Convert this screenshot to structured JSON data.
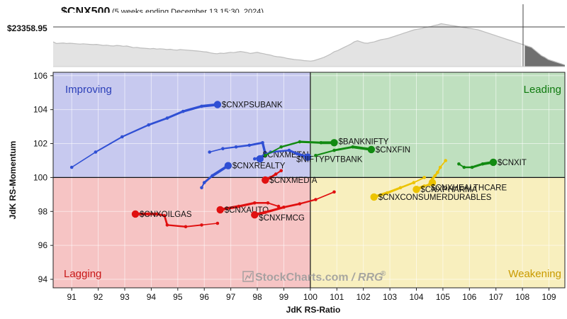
{
  "header": {
    "title": "$CNX500",
    "subtitle": "(5 weeks ending December 13 15:30, 2024)",
    "price_label": "$23358.95"
  },
  "watermark": {
    "brand": "StockCharts.com",
    "suffix": "/ RRG",
    "reg": "®"
  },
  "colors": {
    "improving_bg": "#c7c9ef",
    "leading_bg": "#bfe0bf",
    "lagging_bg": "#f6c4c4",
    "weakening_bg": "#f8efbe",
    "blue": "#2f4fd4",
    "green": "#128a12",
    "red": "#e01010",
    "yellow": "#ecc300"
  },
  "chart_data": {
    "type": "scatter",
    "title": "",
    "xlabel": "JdK RS-Ratio",
    "ylabel": "JdK RS-Momentum",
    "xlim": [
      90.3,
      109.6
    ],
    "ylim": [
      93.5,
      106.2
    ],
    "xticks": [
      91,
      92,
      93,
      94,
      95,
      96,
      97,
      98,
      99,
      100,
      101,
      102,
      103,
      104,
      105,
      106,
      107,
      108,
      109
    ],
    "yticks": [
      94,
      96,
      98,
      100,
      102,
      104,
      106
    ],
    "grid": true,
    "center": [
      100,
      100
    ],
    "quadrants": {
      "top_left": "Improving",
      "top_right": "Leading",
      "bottom_left": "Lagging",
      "bottom_right": "Weakening"
    },
    "series": [
      {
        "name": "$CNXPSUBANK",
        "color": "blue",
        "points": [
          [
            91.0,
            100.6
          ],
          [
            91.9,
            101.5
          ],
          [
            92.9,
            102.4
          ],
          [
            93.9,
            103.1
          ],
          [
            94.6,
            103.5
          ],
          [
            95.2,
            103.9
          ],
          [
            95.9,
            104.2
          ],
          [
            96.5,
            104.3
          ]
        ]
      },
      {
        "name": "$CNXREALTY",
        "color": "blue",
        "points": [
          [
            95.9,
            99.4
          ],
          [
            96.0,
            99.7
          ],
          [
            96.3,
            100.1
          ],
          [
            96.9,
            100.7
          ]
        ]
      },
      {
        "name": "$CNXMETAL",
        "color": "blue",
        "points": [
          [
            96.2,
            101.5
          ],
          [
            96.7,
            101.7
          ],
          [
            97.2,
            101.8
          ],
          [
            97.7,
            101.9
          ],
          [
            98.2,
            102.05
          ],
          [
            98.3,
            101.4
          ],
          [
            98.1,
            101.1
          ]
        ]
      },
      {
        "name": "$NIFTYPVTBANK",
        "color": "blue",
        "points": [
          [
            97.9,
            101.1
          ],
          [
            98.5,
            101.5
          ],
          [
            99.2,
            101.6
          ],
          [
            99.5,
            101.4
          ],
          [
            99.9,
            101.2
          ]
        ]
      },
      {
        "name": "$BANKNIFTY",
        "color": "green",
        "points": [
          [
            98.3,
            101.3
          ],
          [
            98.9,
            101.8
          ],
          [
            99.6,
            102.1
          ],
          [
            100.4,
            102.05
          ],
          [
            100.9,
            102.05
          ]
        ]
      },
      {
        "name": "$CNXFIN",
        "color": "green",
        "points": [
          [
            100.2,
            101.3
          ],
          [
            100.9,
            101.6
          ],
          [
            101.6,
            101.8
          ],
          [
            102.3,
            101.65
          ]
        ]
      },
      {
        "name": "$CNXIT",
        "color": "green",
        "points": [
          [
            105.6,
            100.8
          ],
          [
            105.8,
            100.6
          ],
          [
            106.1,
            100.6
          ],
          [
            106.5,
            100.8
          ],
          [
            106.9,
            100.9
          ]
        ]
      },
      {
        "name": "$CNXMEDIA",
        "color": "red",
        "points": [
          [
            98.9,
            100.4
          ],
          [
            98.7,
            100.2
          ],
          [
            98.5,
            100.0
          ],
          [
            98.3,
            99.85
          ]
        ]
      },
      {
        "name": "$CNXAUTO",
        "color": "red",
        "points": [
          [
            98.8,
            98.3
          ],
          [
            98.4,
            98.5
          ],
          [
            97.9,
            98.5
          ],
          [
            97.3,
            98.3
          ],
          [
            96.6,
            98.1
          ]
        ]
      },
      {
        "name": "$CNXFMCG",
        "color": "red",
        "points": [
          [
            100.9,
            99.15
          ],
          [
            100.2,
            98.7
          ],
          [
            99.6,
            98.45
          ],
          [
            99.0,
            98.25
          ],
          [
            98.3,
            97.95
          ],
          [
            97.9,
            97.8
          ]
        ]
      },
      {
        "name": "$CNXOILGAS",
        "color": "red",
        "points": [
          [
            96.5,
            97.3
          ],
          [
            95.9,
            97.2
          ],
          [
            95.3,
            97.1
          ],
          [
            94.6,
            97.2
          ],
          [
            94.5,
            97.75
          ],
          [
            94.2,
            97.85
          ],
          [
            93.9,
            97.85
          ],
          [
            93.4,
            97.85
          ]
        ]
      },
      {
        "name": "$CNXHEALTHCARE",
        "color": "yellow",
        "points": [
          [
            105.1,
            101.0
          ],
          [
            104.9,
            100.6
          ],
          [
            104.8,
            100.3
          ],
          [
            104.7,
            100.1
          ],
          [
            104.6,
            99.9
          ],
          [
            104.6,
            99.7
          ]
        ]
      },
      {
        "name": "$CNXPHARMA",
        "color": "yellow",
        "points": [
          [
            104.5,
            99.6
          ],
          [
            104.3,
            99.5
          ],
          [
            104.0,
            99.3
          ]
        ]
      },
      {
        "name": "$CNXCONSUMERDURABLES",
        "color": "yellow",
        "points": [
          [
            104.3,
            100.0
          ],
          [
            103.9,
            99.7
          ],
          [
            103.4,
            99.4
          ],
          [
            102.9,
            99.1
          ],
          [
            102.4,
            98.85
          ]
        ]
      }
    ],
    "benchmark_line": [
      1.0,
      0.97,
      0.975,
      0.98,
      0.97,
      0.975,
      0.97,
      0.965,
      0.96,
      0.965,
      0.96,
      0.955,
      0.95,
      0.955,
      0.945,
      0.935,
      0.94,
      0.93,
      0.925,
      0.935,
      0.93,
      0.92,
      0.925,
      0.91,
      0.895,
      0.9,
      0.89,
      0.885,
      0.88,
      0.875,
      0.88,
      0.87,
      0.875,
      0.87,
      0.86,
      0.865,
      0.855,
      0.85,
      0.86,
      0.855,
      0.85,
      0.845,
      0.84,
      0.835,
      0.83,
      0.82,
      0.815,
      0.8,
      0.79,
      0.785,
      0.795,
      0.79,
      0.8,
      0.81,
      0.805,
      0.815,
      0.825,
      0.815,
      0.805,
      0.79,
      0.8,
      0.81,
      0.795,
      0.785,
      0.77,
      0.76,
      0.74,
      0.73,
      0.725,
      0.715,
      0.7,
      0.69,
      0.68,
      0.675,
      0.67,
      0.66,
      0.655,
      0.65,
      0.66,
      0.68,
      0.7,
      0.72,
      0.75,
      0.78,
      0.82,
      0.84,
      0.87,
      0.9,
      0.93,
      0.96,
      1.0,
      1.02,
      1.0,
      0.98,
      0.975,
      0.99,
      1.0,
      1.02,
      1.04,
      1.05,
      1.06,
      1.08,
      1.1,
      1.12,
      1.14,
      1.16,
      1.18,
      1.2,
      1.22,
      1.23,
      1.24,
      1.26,
      1.27,
      1.28,
      1.3,
      1.31,
      1.33,
      1.32,
      1.31,
      1.3,
      1.29,
      1.28,
      1.27,
      1.26,
      1.25,
      1.24,
      1.23,
      1.22,
      1.2,
      1.18,
      1.16,
      1.14,
      1.12,
      1.1,
      1.08,
      1.06,
      1.04,
      1.02,
      1.0,
      0.98,
      0.96,
      0.94,
      0.92,
      0.9,
      0.85,
      0.8,
      0.75,
      0.72,
      0.68,
      0.66,
      0.64,
      0.62,
      0.6,
      0.58
    ]
  }
}
